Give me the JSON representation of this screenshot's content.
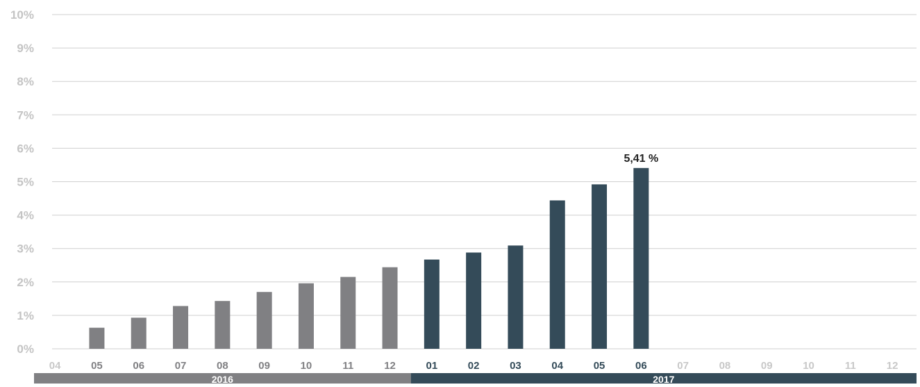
{
  "chart_data": {
    "type": "bar",
    "title": "",
    "xlabel": "",
    "ylabel": "",
    "ylim": [
      0,
      10
    ],
    "yticks": [
      "0%",
      "1%",
      "2%",
      "3%",
      "4%",
      "5%",
      "6%",
      "7%",
      "8%",
      "9%",
      "10%"
    ],
    "grid": true,
    "categories": [
      "04",
      "05",
      "06",
      "07",
      "08",
      "09",
      "10",
      "11",
      "12",
      "01",
      "02",
      "03",
      "04",
      "05",
      "06",
      "07",
      "08",
      "09",
      "10",
      "11",
      "12"
    ],
    "values": [
      null,
      0.63,
      0.93,
      1.28,
      1.43,
      1.7,
      1.96,
      2.15,
      2.44,
      2.67,
      2.88,
      3.09,
      4.44,
      4.92,
      5.41,
      null,
      null,
      null,
      null,
      null,
      null
    ],
    "years": [
      {
        "label": "2016",
        "count": 9,
        "color": "#808083"
      },
      {
        "label": "2017",
        "count": 12,
        "color": "#344b59"
      }
    ],
    "highlight": {
      "index": 14,
      "label": "5,41 %"
    },
    "colors": {
      "bar_2016": "#808083",
      "bar_2017": "#344b59",
      "tick_active_2016": "#808083",
      "tick_active_2017": "#344b59",
      "tick_empty": "#c8c8c8",
      "ytick": "#c4c4c4",
      "grid": "#cfcfcf",
      "highlight_label": "#222222"
    }
  }
}
